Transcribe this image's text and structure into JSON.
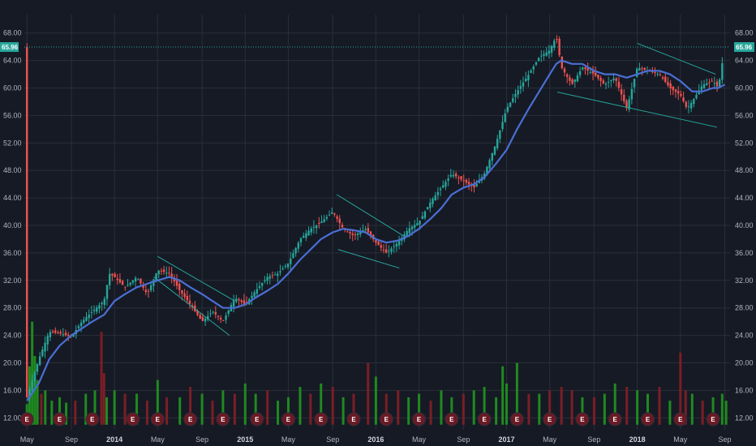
{
  "chart_data": {
    "type": "candlestick",
    "y_axis": {
      "ticks": [
        "68.00",
        "64.00",
        "60.00",
        "56.00",
        "52.00",
        "48.00",
        "44.00",
        "40.00",
        "36.00",
        "32.00",
        "28.00",
        "24.00",
        "20.00",
        "16.00",
        "12.00"
      ],
      "range": [
        10.5,
        69.5
      ]
    },
    "x_axis": {
      "labels": [
        {
          "text": "May",
          "t": 2013.33,
          "year": false
        },
        {
          "text": "Sep",
          "t": 2013.67,
          "year": false
        },
        {
          "text": "2014",
          "t": 2014.0,
          "year": true
        },
        {
          "text": "May",
          "t": 2014.33,
          "year": false
        },
        {
          "text": "Sep",
          "t": 2014.67,
          "year": false
        },
        {
          "text": "2015",
          "t": 2015.0,
          "year": true
        },
        {
          "text": "May",
          "t": 2015.33,
          "year": false
        },
        {
          "text": "Sep",
          "t": 2015.67,
          "year": false
        },
        {
          "text": "2016",
          "t": 2016.0,
          "year": true
        },
        {
          "text": "May",
          "t": 2016.33,
          "year": false
        },
        {
          "text": "Sep",
          "t": 2016.67,
          "year": false
        },
        {
          "text": "2017",
          "t": 2017.0,
          "year": true
        },
        {
          "text": "May",
          "t": 2017.33,
          "year": false
        },
        {
          "text": "Sep",
          "t": 2017.67,
          "year": false
        },
        {
          "text": "2018",
          "t": 2018.0,
          "year": true
        },
        {
          "text": "May",
          "t": 2018.33,
          "year": false
        },
        {
          "text": "Sep",
          "t": 2018.67,
          "year": false
        }
      ],
      "range": [
        2013.31,
        2018.71
      ]
    },
    "last_price": {
      "label": "65.96",
      "value": 65.96
    },
    "price_path": [
      [
        2013.33,
        15.0
      ],
      [
        2013.42,
        20.5
      ],
      [
        2013.5,
        24.5
      ],
      [
        2013.58,
        24.3
      ],
      [
        2013.67,
        23.8
      ],
      [
        2013.75,
        26.0
      ],
      [
        2013.83,
        27.5
      ],
      [
        2013.92,
        29.0
      ],
      [
        2013.96,
        33.0
      ],
      [
        2014.0,
        32.5
      ],
      [
        2014.08,
        31.0
      ],
      [
        2014.17,
        32.5
      ],
      [
        2014.25,
        30.0
      ],
      [
        2014.33,
        33.5
      ],
      [
        2014.42,
        33.0
      ],
      [
        2014.5,
        30.5
      ],
      [
        2014.58,
        28.5
      ],
      [
        2014.67,
        26.0
      ],
      [
        2014.75,
        27.5
      ],
      [
        2014.83,
        26.0
      ],
      [
        2014.92,
        29.5
      ],
      [
        2015.0,
        28.5
      ],
      [
        2015.08,
        30.5
      ],
      [
        2015.17,
        32.5
      ],
      [
        2015.25,
        33.0
      ],
      [
        2015.33,
        34.5
      ],
      [
        2015.42,
        38.0
      ],
      [
        2015.5,
        39.5
      ],
      [
        2015.58,
        40.5
      ],
      [
        2015.67,
        42.0
      ],
      [
        2015.75,
        39.5
      ],
      [
        2015.83,
        38.5
      ],
      [
        2015.92,
        39.5
      ],
      [
        2016.0,
        37.5
      ],
      [
        2016.08,
        36.0
      ],
      [
        2016.17,
        37.5
      ],
      [
        2016.25,
        39.5
      ],
      [
        2016.33,
        40.5
      ],
      [
        2016.42,
        43.5
      ],
      [
        2016.5,
        45.5
      ],
      [
        2016.58,
        47.5
      ],
      [
        2016.67,
        46.5
      ],
      [
        2016.75,
        45.5
      ],
      [
        2016.83,
        47.5
      ],
      [
        2016.92,
        52.0
      ],
      [
        2017.0,
        57.0
      ],
      [
        2017.08,
        59.5
      ],
      [
        2017.17,
        62.0
      ],
      [
        2017.25,
        64.5
      ],
      [
        2017.33,
        65.5
      ],
      [
        2017.38,
        67.5
      ],
      [
        2017.42,
        63.0
      ],
      [
        2017.5,
        60.5
      ],
      [
        2017.58,
        63.0
      ],
      [
        2017.67,
        62.0
      ],
      [
        2017.75,
        60.5
      ],
      [
        2017.83,
        61.5
      ],
      [
        2017.92,
        57.0
      ],
      [
        2018.0,
        63.0
      ],
      [
        2018.08,
        62.5
      ],
      [
        2018.17,
        62.0
      ],
      [
        2018.25,
        60.0
      ],
      [
        2018.33,
        59.0
      ],
      [
        2018.38,
        57.0
      ],
      [
        2018.42,
        58.0
      ],
      [
        2018.5,
        60.5
      ],
      [
        2018.58,
        61.0
      ],
      [
        2018.62,
        60.0
      ],
      [
        2018.67,
        65.96
      ]
    ],
    "moving_average": [
      [
        2013.33,
        14.5
      ],
      [
        2013.42,
        17.0
      ],
      [
        2013.5,
        20.5
      ],
      [
        2013.58,
        22.5
      ],
      [
        2013.67,
        24.0
      ],
      [
        2013.75,
        25.0
      ],
      [
        2013.83,
        26.0
      ],
      [
        2013.92,
        27.0
      ],
      [
        2014.0,
        29.0
      ],
      [
        2014.08,
        30.0
      ],
      [
        2014.17,
        31.0
      ],
      [
        2014.25,
        31.5
      ],
      [
        2014.33,
        32.0
      ],
      [
        2014.42,
        32.5
      ],
      [
        2014.5,
        32.0
      ],
      [
        2014.58,
        31.0
      ],
      [
        2014.67,
        30.0
      ],
      [
        2014.75,
        29.0
      ],
      [
        2014.83,
        28.0
      ],
      [
        2014.92,
        28.0
      ],
      [
        2015.0,
        28.5
      ],
      [
        2015.08,
        29.5
      ],
      [
        2015.17,
        30.5
      ],
      [
        2015.25,
        31.5
      ],
      [
        2015.33,
        33.0
      ],
      [
        2015.42,
        35.0
      ],
      [
        2015.5,
        36.5
      ],
      [
        2015.58,
        38.0
      ],
      [
        2015.67,
        39.0
      ],
      [
        2015.75,
        39.5
      ],
      [
        2015.83,
        39.3
      ],
      [
        2015.92,
        39.0
      ],
      [
        2016.0,
        38.0
      ],
      [
        2016.08,
        37.5
      ],
      [
        2016.17,
        37.8
      ],
      [
        2016.25,
        38.5
      ],
      [
        2016.33,
        39.5
      ],
      [
        2016.42,
        41.0
      ],
      [
        2016.5,
        42.5
      ],
      [
        2016.58,
        44.5
      ],
      [
        2016.67,
        45.5
      ],
      [
        2016.75,
        46.0
      ],
      [
        2016.83,
        47.0
      ],
      [
        2016.92,
        49.0
      ],
      [
        2017.0,
        51.0
      ],
      [
        2017.08,
        54.0
      ],
      [
        2017.17,
        57.0
      ],
      [
        2017.25,
        59.5
      ],
      [
        2017.33,
        62.0
      ],
      [
        2017.38,
        63.5
      ],
      [
        2017.42,
        64.0
      ],
      [
        2017.5,
        63.5
      ],
      [
        2017.58,
        63.5
      ],
      [
        2017.67,
        62.5
      ],
      [
        2017.75,
        62.0
      ],
      [
        2017.83,
        62.0
      ],
      [
        2017.92,
        61.5
      ],
      [
        2018.0,
        62.0
      ],
      [
        2018.08,
        62.5
      ],
      [
        2018.17,
        62.5
      ],
      [
        2018.25,
        62.0
      ],
      [
        2018.33,
        61.0
      ],
      [
        2018.42,
        59.5
      ],
      [
        2018.5,
        59.5
      ],
      [
        2018.58,
        60.0
      ],
      [
        2018.62,
        60.0
      ],
      [
        2018.67,
        60.5
      ]
    ],
    "trendlines": [
      [
        [
          2014.33,
          35.5
        ],
        [
          2014.92,
          29.0
        ]
      ],
      [
        [
          2014.3,
          32.5
        ],
        [
          2014.88,
          24.0
        ]
      ],
      [
        [
          2015.7,
          44.5
        ],
        [
          2016.21,
          38.5
        ]
      ],
      [
        [
          2015.71,
          36.5
        ],
        [
          2016.18,
          33.8
        ]
      ],
      [
        [
          2017.39,
          59.4
        ],
        [
          2018.61,
          54.3
        ]
      ],
      [
        [
          2018.0,
          66.5
        ],
        [
          2018.6,
          62.0
        ]
      ]
    ],
    "volume_bars": [
      [
        2013.33,
        14.0,
        "up"
      ],
      [
        2013.35,
        19.5,
        "up"
      ],
      [
        2013.37,
        26.0,
        "up"
      ],
      [
        2013.39,
        21.0,
        "up"
      ],
      [
        2013.41,
        17.5,
        "up"
      ],
      [
        2013.44,
        15.5,
        "down"
      ],
      [
        2013.47,
        16.0,
        "up"
      ],
      [
        2013.52,
        14.5,
        "up"
      ],
      [
        2013.58,
        15.0,
        "up"
      ],
      [
        2013.63,
        14.2,
        "up"
      ],
      [
        2013.7,
        14.5,
        "down"
      ],
      [
        2013.78,
        15.5,
        "up"
      ],
      [
        2013.85,
        16.0,
        "up"
      ],
      [
        2013.9,
        24.5,
        "down"
      ],
      [
        2013.92,
        18.5,
        "down"
      ],
      [
        2013.94,
        15.0,
        "up"
      ],
      [
        2014.0,
        16.0,
        "up"
      ],
      [
        2014.08,
        15.5,
        "down"
      ],
      [
        2014.17,
        15.5,
        "up"
      ],
      [
        2014.25,
        14.5,
        "down"
      ],
      [
        2014.33,
        17.5,
        "up"
      ],
      [
        2014.4,
        15.0,
        "down"
      ],
      [
        2014.5,
        15.0,
        "up"
      ],
      [
        2014.58,
        16.5,
        "down"
      ],
      [
        2014.67,
        15.5,
        "up"
      ],
      [
        2014.75,
        14.5,
        "down"
      ],
      [
        2014.83,
        16.0,
        "up"
      ],
      [
        2014.92,
        15.5,
        "down"
      ],
      [
        2015.0,
        17.0,
        "up"
      ],
      [
        2015.08,
        15.5,
        "up"
      ],
      [
        2015.17,
        16.0,
        "down"
      ],
      [
        2015.25,
        14.5,
        "up"
      ],
      [
        2015.33,
        15.0,
        "up"
      ],
      [
        2015.42,
        16.5,
        "up"
      ],
      [
        2015.5,
        15.5,
        "down"
      ],
      [
        2015.58,
        17.0,
        "up"
      ],
      [
        2015.67,
        16.5,
        "down"
      ],
      [
        2015.75,
        15.0,
        "up"
      ],
      [
        2015.83,
        15.5,
        "down"
      ],
      [
        2015.94,
        20.0,
        "down"
      ],
      [
        2016.0,
        18.0,
        "up"
      ],
      [
        2016.08,
        15.5,
        "down"
      ],
      [
        2016.17,
        16.0,
        "down"
      ],
      [
        2016.25,
        15.0,
        "up"
      ],
      [
        2016.33,
        15.5,
        "up"
      ],
      [
        2016.42,
        14.5,
        "down"
      ],
      [
        2016.5,
        16.0,
        "up"
      ],
      [
        2016.58,
        15.0,
        "up"
      ],
      [
        2016.67,
        15.5,
        "down"
      ],
      [
        2016.75,
        16.0,
        "up"
      ],
      [
        2016.83,
        16.5,
        "up"
      ],
      [
        2016.92,
        15.0,
        "up"
      ],
      [
        2016.97,
        19.5,
        "up"
      ],
      [
        2017.0,
        17.0,
        "up"
      ],
      [
        2017.08,
        20.0,
        "up"
      ],
      [
        2017.17,
        15.5,
        "down"
      ],
      [
        2017.25,
        15.5,
        "up"
      ],
      [
        2017.33,
        16.0,
        "down"
      ],
      [
        2017.42,
        16.5,
        "down"
      ],
      [
        2017.5,
        16.0,
        "down"
      ],
      [
        2017.58,
        15.0,
        "up"
      ],
      [
        2017.67,
        15.0,
        "down"
      ],
      [
        2017.75,
        15.5,
        "up"
      ],
      [
        2017.83,
        17.0,
        "up"
      ],
      [
        2017.92,
        16.5,
        "down"
      ],
      [
        2018.0,
        16.0,
        "up"
      ],
      [
        2018.08,
        15.5,
        "up"
      ],
      [
        2018.17,
        16.5,
        "down"
      ],
      [
        2018.25,
        14.5,
        "up"
      ],
      [
        2018.33,
        21.5,
        "down"
      ],
      [
        2018.37,
        16.0,
        "down"
      ],
      [
        2018.42,
        15.5,
        "up"
      ],
      [
        2018.5,
        14.5,
        "down"
      ],
      [
        2018.58,
        15.0,
        "up"
      ],
      [
        2018.65,
        15.5,
        "up"
      ],
      [
        2018.68,
        14.5,
        "up"
      ]
    ],
    "earnings_markers": [
      {
        "label": "E",
        "t": 2013.33
      },
      {
        "label": "E",
        "t": 2013.58
      },
      {
        "label": "E",
        "t": 2013.83
      },
      {
        "label": "E",
        "t": 2014.14
      },
      {
        "label": "E",
        "t": 2014.33
      },
      {
        "label": "E",
        "t": 2014.58
      },
      {
        "label": "E",
        "t": 2014.83
      },
      {
        "label": "E",
        "t": 2015.09
      },
      {
        "label": "E",
        "t": 2015.33
      },
      {
        "label": "E",
        "t": 2015.58
      },
      {
        "label": "E",
        "t": 2015.83
      },
      {
        "label": "E",
        "t": 2016.08
      },
      {
        "label": "E",
        "t": 2016.33
      },
      {
        "label": "E",
        "t": 2016.58
      },
      {
        "label": "E",
        "t": 2016.83
      },
      {
        "label": "E",
        "t": 2017.08
      },
      {
        "label": "E",
        "t": 2017.33
      },
      {
        "label": "E",
        "t": 2017.58
      },
      {
        "label": "E",
        "t": 2017.83
      },
      {
        "label": "E",
        "t": 2018.08
      },
      {
        "label": "E",
        "t": 2018.33
      },
      {
        "label": "E",
        "t": 2018.58
      }
    ]
  },
  "colors": {
    "background": "#161a25",
    "grid": "#2a2e39",
    "up": "#26a69a",
    "down": "#ef5350",
    "up_volume": "#1f8a1f",
    "down_volume": "#7a1f25",
    "ma": "#4a6fd4",
    "trendline": "#26a69a",
    "price_tag": "#26a69a",
    "earnings": "#6b1a24"
  }
}
